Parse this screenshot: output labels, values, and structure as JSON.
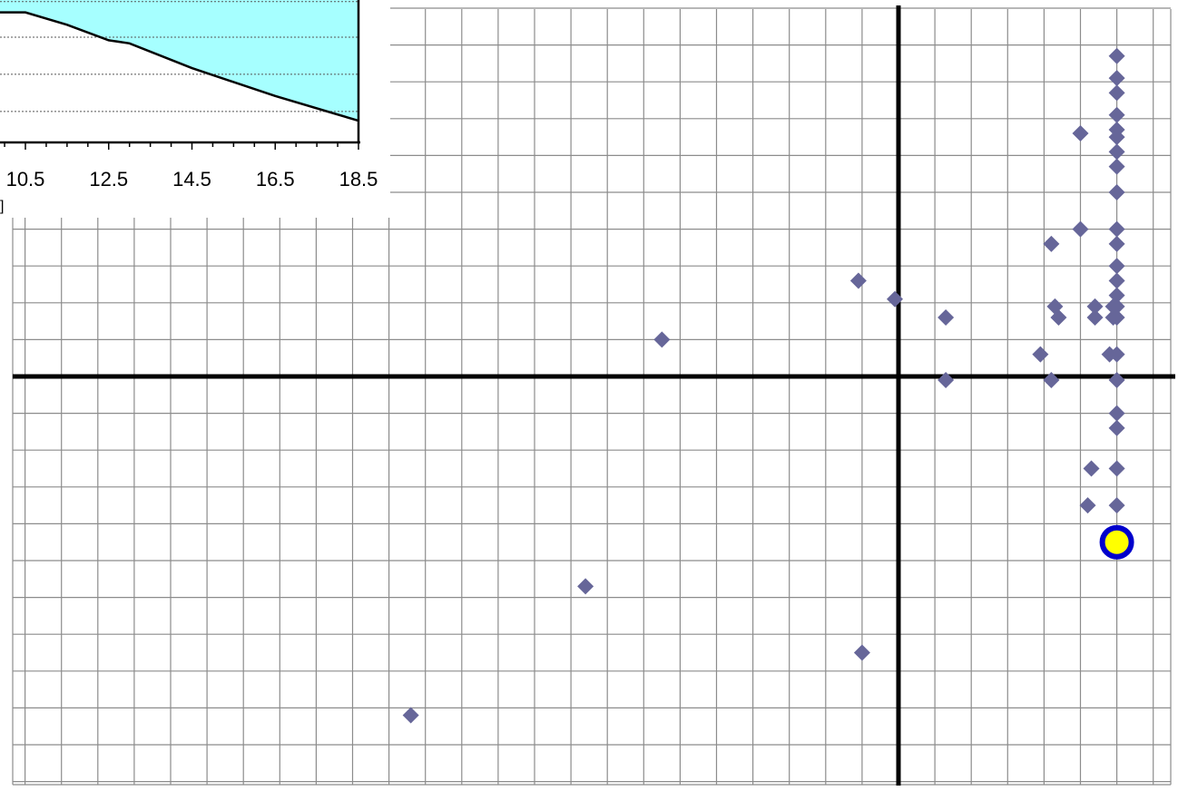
{
  "colors": {
    "grid": "#8c8c8c",
    "axis": "#000000",
    "marker": "#666699",
    "highlight_fill": "#ffff00",
    "highlight_ring": "#0000cc",
    "inset_fill": "#a6ffff",
    "inset_gridline": "#555555"
  },
  "chart_data": [
    {
      "type": "scatter",
      "title": "",
      "xlabel": "",
      "ylabel": "",
      "grid": true,
      "xlim": [
        -24,
        7.5
      ],
      "ylim": [
        -10.5,
        10
      ],
      "points": [
        [
          6,
          8.7
        ],
        [
          6,
          8.1
        ],
        [
          6,
          7.7
        ],
        [
          6,
          7.1
        ],
        [
          6,
          6.7
        ],
        [
          6,
          6.5
        ],
        [
          6,
          6.1
        ],
        [
          6,
          5.7
        ],
        [
          6,
          5
        ],
        [
          6,
          4
        ],
        [
          6,
          3.6
        ],
        [
          6,
          3
        ],
        [
          6,
          2.6
        ],
        [
          6,
          2.2
        ],
        [
          6,
          1.9
        ],
        [
          6,
          1.6
        ],
        [
          6,
          0.6
        ],
        [
          6,
          -0.1
        ],
        [
          6,
          -1
        ],
        [
          6,
          -1.4
        ],
        [
          6,
          -2.5
        ],
        [
          6,
          -3.5
        ],
        [
          5.9,
          1.9
        ],
        [
          5.9,
          1.6
        ],
        [
          5.8,
          0.6
        ],
        [
          5.4,
          1.9
        ],
        [
          5.4,
          1.6
        ],
        [
          5.3,
          -2.5
        ],
        [
          5.2,
          -3.5
        ],
        [
          5,
          6.6
        ],
        [
          5,
          4
        ],
        [
          4.4,
          1.6
        ],
        [
          4.3,
          1.9
        ],
        [
          4.2,
          3.6
        ],
        [
          4.2,
          -0.1
        ],
        [
          3.9,
          0.6
        ],
        [
          1.3,
          1.6
        ],
        [
          1.3,
          -0.1
        ],
        [
          -0.1,
          2.1
        ],
        [
          -1.1,
          2.6
        ],
        [
          -6.5,
          1
        ],
        [
          -8.6,
          -5.7
        ],
        [
          -1,
          -7.5
        ],
        [
          -13.4,
          -9.2
        ]
      ],
      "highlight_point": [
        6,
        -4.5
      ]
    },
    {
      "type": "area",
      "title": "",
      "xlabel": "",
      "ylabel": "",
      "x_ticks": [
        "10.5",
        "12.5",
        "14.5",
        "16.5",
        "18.5"
      ],
      "x": [
        10.5,
        11.5,
        12.5,
        13.0,
        14.5,
        16.5,
        18.5
      ],
      "y": [
        0.92,
        0.88,
        0.83,
        0.82,
        0.74,
        0.65,
        0.57
      ],
      "xlim": [
        10.5,
        18.5
      ],
      "ylim": [
        0.5,
        0.96
      ],
      "gridlines_y": [
        0.6,
        0.72,
        0.84,
        0.955
      ],
      "grid": "dotted"
    }
  ],
  "inset": {
    "axis_unit_fragment": "]"
  }
}
